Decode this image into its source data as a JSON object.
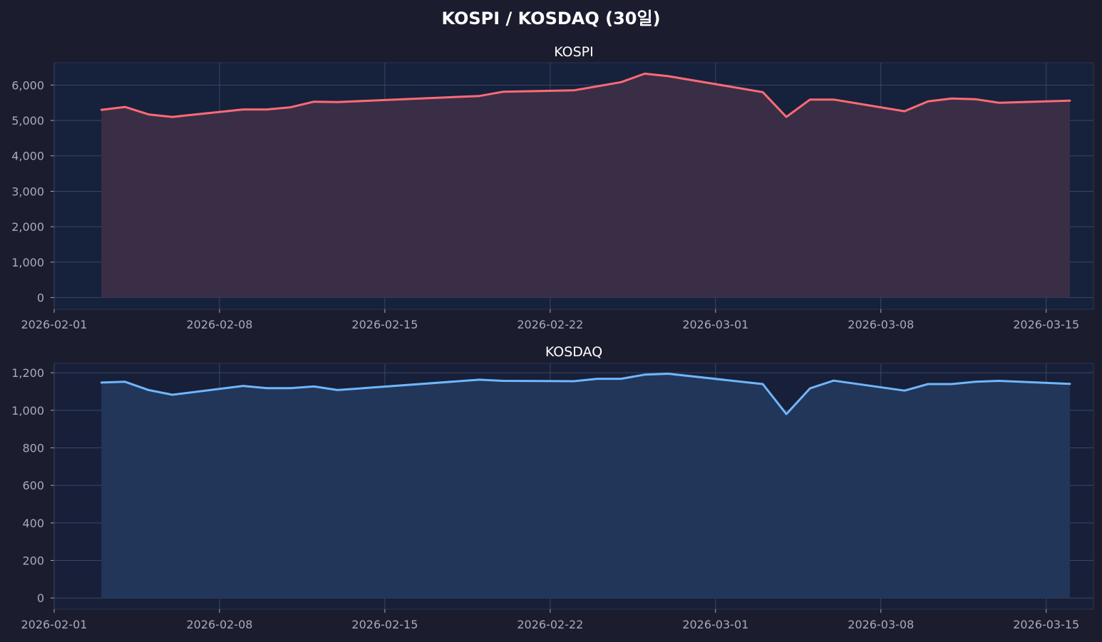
{
  "suptitle": "KOSPI / KOSDAQ (30일)",
  "colors": {
    "figure_bg": "#1b1c2e",
    "grid": "#3c4663",
    "tick_text": "#a8abba",
    "title_text": "#ffffff",
    "spine": "#2c3450"
  },
  "x_ticks": [
    "2026-02-01",
    "2026-02-08",
    "2026-02-15",
    "2026-02-22",
    "2026-03-01",
    "2026-03-08",
    "2026-03-15"
  ],
  "chart_data": [
    {
      "type": "area",
      "title": "KOSPI",
      "color": "#ff6b75",
      "plot_bg": "#16213c",
      "fill": "#3a2e46",
      "xlim": [
        "2026-02-01",
        "2026-03-17"
      ],
      "ylim": [
        -330,
        6630
      ],
      "y_ticks": [
        0,
        1000,
        2000,
        3000,
        4000,
        5000,
        6000
      ],
      "y_tick_labels": [
        "0",
        "1,000",
        "2,000",
        "3,000",
        "4,000",
        "5,000",
        "6,000"
      ],
      "x": [
        "2026-02-03",
        "2026-02-04",
        "2026-02-05",
        "2026-02-06",
        "2026-02-09",
        "2026-02-10",
        "2026-02-11",
        "2026-02-12",
        "2026-02-13",
        "2026-02-19",
        "2026-02-20",
        "2026-02-23",
        "2026-02-25",
        "2026-02-26",
        "2026-02-27",
        "2026-03-03",
        "2026-03-04",
        "2026-03-05",
        "2026-03-06",
        "2026-03-09",
        "2026-03-10",
        "2026-03-11",
        "2026-03-12",
        "2026-03-13",
        "2026-03-16"
      ],
      "y": [
        5300,
        5380,
        5170,
        5100,
        5310,
        5310,
        5370,
        5530,
        5520,
        5690,
        5810,
        5850,
        6080,
        6320,
        6250,
        5800,
        5100,
        5590,
        5590,
        5260,
        5540,
        5620,
        5600,
        5500,
        5560
      ]
    },
    {
      "type": "area",
      "title": "KOSDAQ",
      "color": "#70b6ff",
      "plot_bg": "#172038",
      "fill": "#22365a",
      "xlim": [
        "2026-02-01",
        "2026-03-17"
      ],
      "ylim": [
        -60,
        1250
      ],
      "y_ticks": [
        0,
        200,
        400,
        600,
        800,
        1000,
        1200
      ],
      "y_tick_labels": [
        "0",
        "200",
        "400",
        "600",
        "800",
        "1,000",
        "1,200"
      ],
      "x": [
        "2026-02-03",
        "2026-02-04",
        "2026-02-05",
        "2026-02-06",
        "2026-02-09",
        "2026-02-10",
        "2026-02-11",
        "2026-02-12",
        "2026-02-13",
        "2026-02-19",
        "2026-02-20",
        "2026-02-23",
        "2026-02-24",
        "2026-02-25",
        "2026-02-26",
        "2026-02-27",
        "2026-03-03",
        "2026-03-04",
        "2026-03-05",
        "2026-03-06",
        "2026-03-09",
        "2026-03-10",
        "2026-03-11",
        "2026-03-12",
        "2026-03-13",
        "2026-03-16"
      ],
      "y": [
        1148,
        1152,
        1108,
        1083,
        1130,
        1118,
        1118,
        1127,
        1108,
        1163,
        1157,
        1155,
        1168,
        1168,
        1190,
        1195,
        1140,
        980,
        1117,
        1158,
        1105,
        1140,
        1140,
        1152,
        1157,
        1141
      ]
    }
  ]
}
